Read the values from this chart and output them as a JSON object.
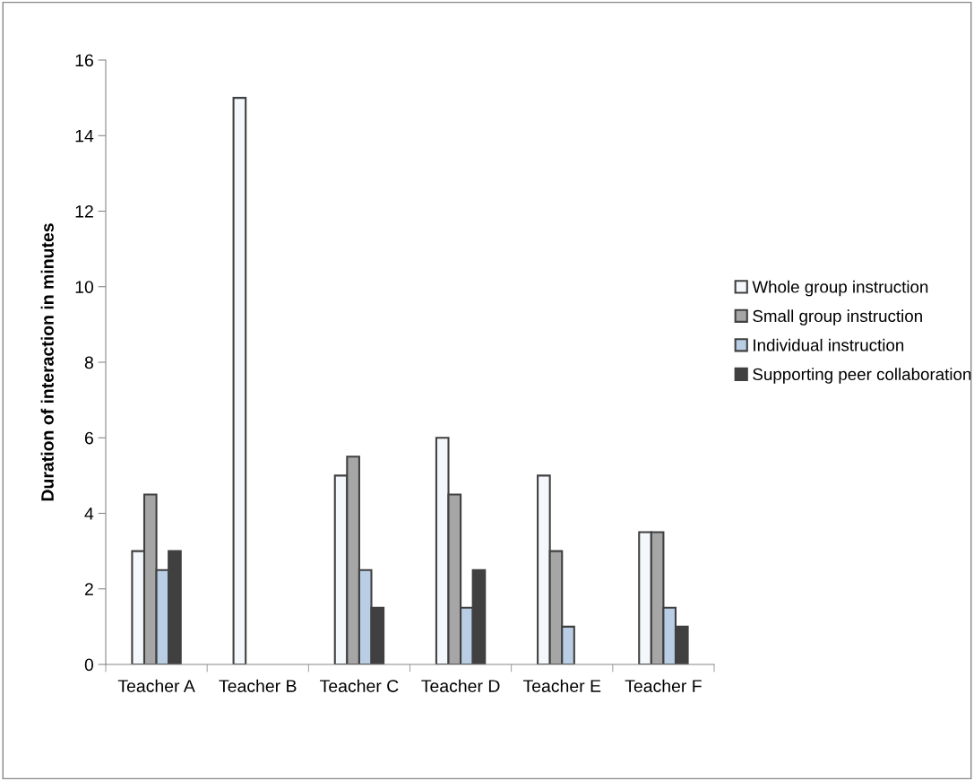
{
  "chart_data": {
    "type": "bar",
    "ylabel": "Duration of interaction in minutes",
    "categories": [
      "Teacher A",
      "Teacher B",
      "Teacher C",
      "Teacher D",
      "Teacher E",
      "Teacher F"
    ],
    "series": [
      {
        "name": "Whole group instruction",
        "color": "#f4f7fb",
        "values": [
          3,
          15,
          5,
          6,
          5,
          3.5
        ]
      },
      {
        "name": "Small group instruction",
        "color": "#a6a6a6",
        "values": [
          4.5,
          null,
          5.5,
          4.5,
          3,
          3.5
        ]
      },
      {
        "name": "Individual instruction",
        "color": "#b9cde5",
        "values": [
          2.5,
          null,
          2.5,
          1.5,
          1,
          1.5
        ]
      },
      {
        "name": "Supporting peer collaboration",
        "color": "#404040",
        "values": [
          3,
          null,
          1.5,
          2.5,
          null,
          1
        ]
      }
    ],
    "ylim": [
      0,
      16
    ],
    "yticks": [
      0,
      2,
      4,
      6,
      8,
      10,
      12,
      14,
      16
    ],
    "grid": false,
    "legend": "right"
  }
}
